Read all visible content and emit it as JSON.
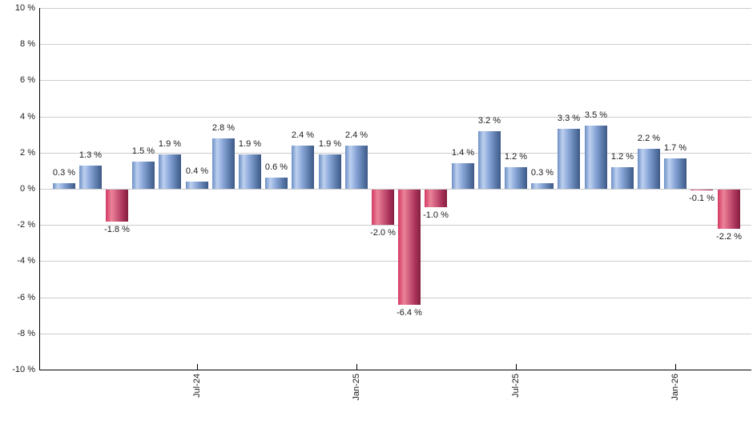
{
  "chart_data": {
    "type": "bar",
    "title": "",
    "xlabel": "",
    "ylabel": "",
    "ylim": [
      -10,
      10
    ],
    "ytick_step": 2,
    "ytick_labels": [
      "10 %",
      "8 %",
      "6 %",
      "4 %",
      "2 %",
      "0 %",
      "-2 %",
      "-4 %",
      "-6 %",
      "-8 %",
      "-10 %"
    ],
    "xtick_labels": [
      "Jul-24",
      "Jan-25",
      "Jul-25",
      "Jan-26"
    ],
    "xtick_bar_indices": [
      5,
      11,
      17,
      23
    ],
    "values": [
      0.3,
      1.3,
      -1.8,
      1.5,
      1.9,
      0.4,
      2.8,
      1.9,
      0.6,
      2.4,
      1.9,
      2.4,
      -2.0,
      -6.4,
      -1.0,
      1.4,
      3.2,
      1.2,
      0.3,
      3.3,
      3.5,
      1.2,
      2.2,
      1.7,
      -0.1,
      -2.2
    ],
    "bar_labels": [
      "0.3 %",
      "1.3 %",
      "-1.8 %",
      "1.5 %",
      "1.9 %",
      "0.4 %",
      "2.8 %",
      "1.9 %",
      "0.6 %",
      "2.4 %",
      "1.9 %",
      "2.4 %",
      "-2.0 %",
      "-6.4 %",
      "-1.0 %",
      "1.4 %",
      "3.2 %",
      "1.2 %",
      "0.3 %",
      "3.3 %",
      "3.5 %",
      "1.2 %",
      "2.2 %",
      "1.7 %",
      "-0.1 %",
      "-2.2 %"
    ],
    "grid": true,
    "legend": false,
    "colors": {
      "positive_gradient_stops": [
        "#6d8fc4 0%",
        "#bdd1f0 22%",
        "#8aa6d8 48%",
        "#5a7aaa 78%",
        "#3d5886 100%"
      ],
      "negative_gradient_stops": [
        "#d23a64 0%",
        "#ec8399 26%",
        "#ce5c7c 50%",
        "#a83158 78%",
        "#83203f 100%"
      ],
      "positive_base": "#7f9dd2",
      "negative_base": "#c85574",
      "gridline": "#cccccc",
      "axis": "#000000",
      "label_text": "#1a1a1a"
    }
  }
}
